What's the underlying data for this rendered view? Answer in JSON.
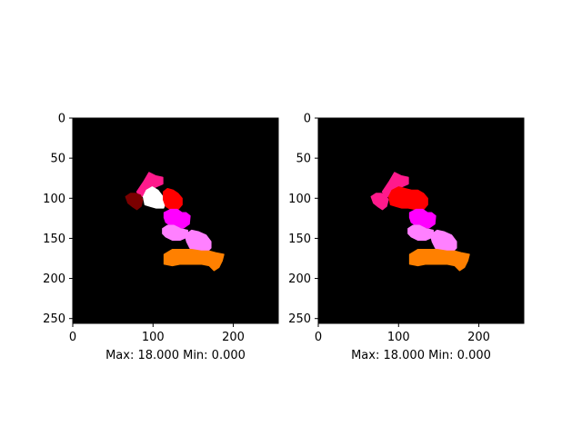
{
  "chart_data": [
    {
      "type": "heatmap",
      "title": "",
      "xlabel": "Max: 18.000 Min: 0.000",
      "ylabel": "",
      "xlim": [
        0,
        256
      ],
      "ylim": [
        256,
        0
      ],
      "x_ticks": [
        0,
        100,
        200
      ],
      "y_ticks": [
        0,
        50,
        100,
        150,
        200,
        250
      ],
      "value_range": [
        0,
        18
      ],
      "background_color": "#000000",
      "grid": false,
      "regions": [
        {
          "color": "#ff1a8c",
          "polygon": [
            [
              80,
              92
            ],
            [
              88,
              80
            ],
            [
              95,
              68
            ],
            [
              103,
              72
            ],
            [
              112,
              74
            ],
            [
              112,
              82
            ],
            [
              103,
              86
            ],
            [
              97,
              92
            ],
            [
              90,
              97
            ],
            [
              84,
              98
            ]
          ]
        },
        {
          "color": "#7a0000",
          "polygon": [
            [
              66,
              98
            ],
            [
              72,
              94
            ],
            [
              78,
              94
            ],
            [
              84,
              96
            ],
            [
              87,
              102
            ],
            [
              85,
              110
            ],
            [
              80,
              114
            ],
            [
              74,
              110
            ],
            [
              69,
              106
            ]
          ]
        },
        {
          "color": "#ffffff",
          "polygon": [
            [
              88,
              98
            ],
            [
              92,
              90
            ],
            [
              99,
              86
            ],
            [
              106,
              90
            ],
            [
              112,
              98
            ],
            [
              115,
              106
            ],
            [
              113,
              112
            ],
            [
              104,
              112
            ],
            [
              97,
              110
            ],
            [
              90,
              108
            ]
          ]
        },
        {
          "color": "#ff0000",
          "polygon": [
            [
              113,
              92
            ],
            [
              118,
              88
            ],
            [
              125,
              90
            ],
            [
              131,
              94
            ],
            [
              136,
              100
            ],
            [
              136,
              108
            ],
            [
              131,
              114
            ],
            [
              122,
              114
            ],
            [
              116,
              110
            ],
            [
              113,
              102
            ]
          ]
        },
        {
          "color": "#ff00ff",
          "polygon": [
            [
              114,
              118
            ],
            [
              122,
              114
            ],
            [
              130,
              114
            ],
            [
              136,
              118
            ],
            [
              141,
              118
            ],
            [
              146,
              122
            ],
            [
              145,
              132
            ],
            [
              138,
              137
            ],
            [
              131,
              136
            ],
            [
              122,
              134
            ],
            [
              116,
              130
            ],
            [
              114,
              124
            ]
          ]
        },
        {
          "color": "#ff80ff",
          "polygon": [
            [
              112,
              138
            ],
            [
              118,
              134
            ],
            [
              126,
              134
            ],
            [
              134,
              138
            ],
            [
              143,
              140
            ],
            [
              143,
              148
            ],
            [
              134,
              152
            ],
            [
              124,
              152
            ],
            [
              116,
              148
            ],
            [
              112,
              144
            ]
          ]
        },
        {
          "color": "#ff80ff",
          "polygon": [
            [
              140,
              146
            ],
            [
              148,
              140
            ],
            [
              157,
              142
            ],
            [
              166,
              146
            ],
            [
              172,
              154
            ],
            [
              172,
              162
            ],
            [
              166,
              168
            ],
            [
              154,
              168
            ],
            [
              146,
              162
            ],
            [
              142,
              154
            ]
          ]
        },
        {
          "color": "#ff8000",
          "polygon": [
            [
              114,
              170
            ],
            [
              124,
              164
            ],
            [
              134,
              164
            ],
            [
              148,
              164
            ],
            [
              160,
              166
            ],
            [
              170,
              166
            ],
            [
              178,
              168
            ],
            [
              188,
              170
            ],
            [
              186,
              178
            ],
            [
              182,
              186
            ],
            [
              176,
              190
            ],
            [
              170,
              184
            ],
            [
              160,
              182
            ],
            [
              148,
              182
            ],
            [
              134,
              182
            ],
            [
              124,
              184
            ],
            [
              114,
              182
            ]
          ]
        }
      ]
    },
    {
      "type": "heatmap",
      "title": "",
      "xlabel": "Max: 18.000 Min: 0.000",
      "ylabel": "",
      "xlim": [
        0,
        256
      ],
      "ylim": [
        256,
        0
      ],
      "x_ticks": [
        0,
        100,
        200
      ],
      "y_ticks": [
        0,
        50,
        100,
        150,
        200,
        250
      ],
      "value_range": [
        0,
        18
      ],
      "background_color": "#000000",
      "grid": false,
      "regions": [
        {
          "color": "#ff1a8c",
          "polygon": [
            [
              80,
              92
            ],
            [
              88,
              80
            ],
            [
              95,
              68
            ],
            [
              103,
              72
            ],
            [
              112,
              74
            ],
            [
              112,
              82
            ],
            [
              103,
              86
            ],
            [
              97,
              92
            ],
            [
              90,
              97
            ],
            [
              84,
              98
            ]
          ]
        },
        {
          "color": "#ff1a8c",
          "polygon": [
            [
              66,
              98
            ],
            [
              72,
              94
            ],
            [
              78,
              94
            ],
            [
              84,
              96
            ],
            [
              87,
              102
            ],
            [
              85,
              110
            ],
            [
              80,
              114
            ],
            [
              74,
              110
            ],
            [
              69,
              106
            ]
          ]
        },
        {
          "color": "#ff0000",
          "polygon": [
            [
              88,
              98
            ],
            [
              92,
              90
            ],
            [
              100,
              86
            ],
            [
              108,
              88
            ],
            [
              116,
              90
            ],
            [
              124,
              90
            ],
            [
              131,
              94
            ],
            [
              136,
              100
            ],
            [
              136,
              108
            ],
            [
              131,
              114
            ],
            [
              122,
              114
            ],
            [
              112,
              112
            ],
            [
              104,
              112
            ],
            [
              97,
              110
            ],
            [
              90,
              108
            ]
          ]
        },
        {
          "color": "#ff00ff",
          "polygon": [
            [
              114,
              118
            ],
            [
              122,
              114
            ],
            [
              130,
              114
            ],
            [
              136,
              118
            ],
            [
              141,
              118
            ],
            [
              146,
              122
            ],
            [
              145,
              132
            ],
            [
              138,
              137
            ],
            [
              131,
              136
            ],
            [
              122,
              134
            ],
            [
              116,
              130
            ],
            [
              114,
              124
            ]
          ]
        },
        {
          "color": "#ff80ff",
          "polygon": [
            [
              112,
              138
            ],
            [
              118,
              134
            ],
            [
              126,
              134
            ],
            [
              134,
              138
            ],
            [
              143,
              140
            ],
            [
              143,
              148
            ],
            [
              134,
              152
            ],
            [
              124,
              152
            ],
            [
              116,
              148
            ],
            [
              112,
              144
            ]
          ]
        },
        {
          "color": "#ff80ff",
          "polygon": [
            [
              140,
              146
            ],
            [
              148,
              140
            ],
            [
              157,
              142
            ],
            [
              166,
              146
            ],
            [
              172,
              154
            ],
            [
              172,
              162
            ],
            [
              166,
              168
            ],
            [
              154,
              168
            ],
            [
              146,
              162
            ],
            [
              142,
              154
            ]
          ]
        },
        {
          "color": "#ff8000",
          "polygon": [
            [
              114,
              170
            ],
            [
              124,
              164
            ],
            [
              134,
              164
            ],
            [
              148,
              164
            ],
            [
              160,
              166
            ],
            [
              170,
              166
            ],
            [
              178,
              168
            ],
            [
              188,
              170
            ],
            [
              186,
              178
            ],
            [
              182,
              186
            ],
            [
              176,
              190
            ],
            [
              170,
              184
            ],
            [
              160,
              182
            ],
            [
              148,
              182
            ],
            [
              134,
              182
            ],
            [
              124,
              184
            ],
            [
              114,
              182
            ]
          ]
        }
      ]
    }
  ]
}
